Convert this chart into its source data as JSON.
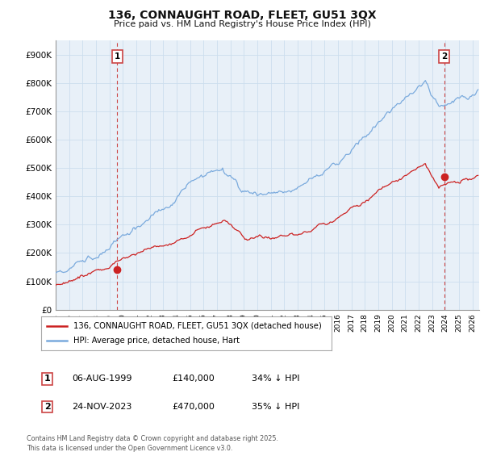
{
  "title": "136, CONNAUGHT ROAD, FLEET, GU51 3QX",
  "subtitle": "Price paid vs. HM Land Registry's House Price Index (HPI)",
  "ylim": [
    0,
    950000
  ],
  "yticks": [
    0,
    100000,
    200000,
    300000,
    400000,
    500000,
    600000,
    700000,
    800000,
    900000
  ],
  "ytick_labels": [
    "£0",
    "£100K",
    "£200K",
    "£300K",
    "£400K",
    "£500K",
    "£600K",
    "£700K",
    "£800K",
    "£900K"
  ],
  "xmin": 1995.0,
  "xmax": 2026.5,
  "grid_color": "#ccddee",
  "chart_bg": "#e8f0f8",
  "hpi_color": "#7aaadd",
  "price_color": "#cc2222",
  "vline_color": "#cc4444",
  "sale1_x": 1999.58,
  "sale1_y": 140000,
  "sale2_x": 2023.9,
  "sale2_y": 470000,
  "legend_entries": [
    "136, CONNAUGHT ROAD, FLEET, GU51 3QX (detached house)",
    "HPI: Average price, detached house, Hart"
  ],
  "table_data": [
    [
      "1",
      "06-AUG-1999",
      "£140,000",
      "34% ↓ HPI"
    ],
    [
      "2",
      "24-NOV-2023",
      "£470,000",
      "35% ↓ HPI"
    ]
  ],
  "footnote": "Contains HM Land Registry data © Crown copyright and database right 2025.\nThis data is licensed under the Open Government Licence v3.0.",
  "background_color": "#ffffff"
}
